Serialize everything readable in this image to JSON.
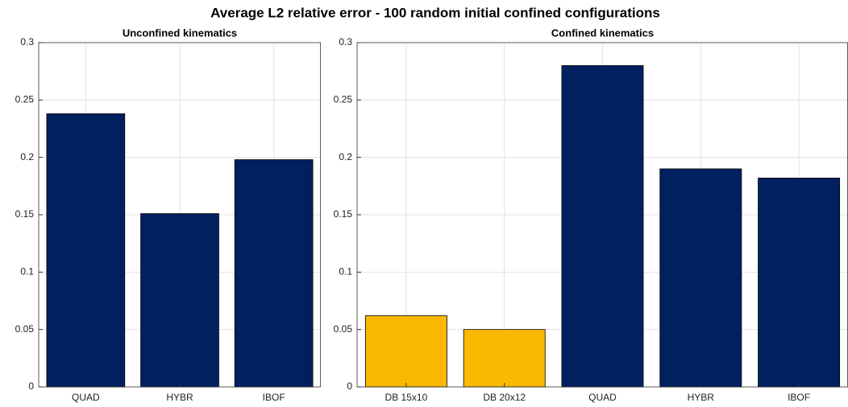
{
  "title": "Average L2 relative error - 100 random initial confined configurations",
  "chart_data": [
    {
      "type": "bar",
      "title": "Unconfined kinematics",
      "categories": [
        "QUAD",
        "HYBR",
        "IBOF"
      ],
      "values": [
        0.238,
        0.151,
        0.198
      ],
      "colors": [
        "#002060",
        "#002060",
        "#002060"
      ],
      "ylim": [
        0,
        0.3
      ],
      "yticks": [
        0,
        0.05,
        0.1,
        0.15,
        0.2,
        0.25,
        0.3
      ],
      "grid": true
    },
    {
      "type": "bar",
      "title": "Confined kinematics",
      "categories": [
        "DB 15x10",
        "DB 20x12",
        "QUAD",
        "HYBR",
        "IBOF"
      ],
      "values": [
        0.062,
        0.05,
        0.28,
        0.19,
        0.182
      ],
      "colors": [
        "#fbb800",
        "#fbb800",
        "#002060",
        "#002060",
        "#002060"
      ],
      "ylim": [
        0,
        0.3
      ],
      "yticks": [
        0,
        0.05,
        0.1,
        0.15,
        0.2,
        0.25,
        0.3
      ],
      "grid": true
    }
  ]
}
